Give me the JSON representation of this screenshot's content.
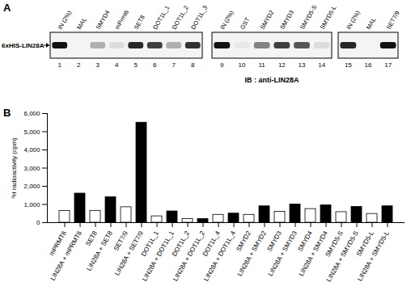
{
  "panels": [
    "A",
    "B"
  ],
  "blot": {
    "band_label": "6xHIS-LIN28A",
    "caption": "IB : anti-LIN28A",
    "groups": [
      {
        "lanes": [
          "IN (2%)",
          "MAL",
          "SMYD4",
          "mPrmt6",
          "SET8",
          "DOT1L_1",
          "DOT1L_2",
          "DOT1L_3"
        ],
        "numbers": [
          1,
          2,
          3,
          4,
          5,
          6,
          7,
          8
        ],
        "band": [
          1,
          0,
          0.3,
          0.1,
          0.9,
          0.8,
          0.3,
          0.85
        ]
      },
      {
        "lanes": [
          "IN (2%)",
          "GST",
          "SMYD2",
          "SMYD3",
          "SMYD5-S",
          "SMYD5-L"
        ],
        "numbers": [
          9,
          10,
          11,
          12,
          13,
          14
        ],
        "band": [
          1,
          0.05,
          0.5,
          0.8,
          0.7,
          0.1
        ]
      },
      {
        "lanes": [
          "IN (2%)",
          "MAL",
          "SET7/9"
        ],
        "numbers": [
          15,
          16,
          17
        ],
        "band": [
          0.9,
          0,
          1
        ]
      }
    ]
  },
  "chart_data": {
    "type": "bar",
    "y_label": "³H radioactivity (cpm)",
    "categories": [
      "mPRMT6",
      "LIN28A + mPRMT6",
      "SET8",
      "LIN28A + SET8",
      "SET7/9",
      "LIN28A + SET7/9",
      "DOT1L_1",
      "LIN28A + DOT1L_1",
      "DOT1L_2",
      "LIN28A + DOT1L_2",
      "DOT1L_4",
      "LIN28A + DOT1L_4",
      "SMYD2",
      "LIN28A + SMYD2",
      "SMYD3",
      "LIN28A + SMYD3",
      "SMYD4",
      "LIN28A + SMYD4",
      "SMYD5-S",
      "LIN28A + SMYD5-S",
      "SMYD5-L",
      "LIN28A + SMYD5-L"
    ],
    "values": [
      650,
      1600,
      650,
      1400,
      850,
      5500,
      350,
      620,
      200,
      200,
      430,
      500,
      430,
      900,
      600,
      1000,
      750,
      950,
      580,
      870,
      480,
      900
    ],
    "colors": [
      "#ffffff",
      "#000000",
      "#ffffff",
      "#000000",
      "#ffffff",
      "#000000",
      "#ffffff",
      "#000000",
      "#ffffff",
      "#000000",
      "#ffffff",
      "#000000",
      "#ffffff",
      "#000000",
      "#ffffff",
      "#000000",
      "#ffffff",
      "#000000",
      "#ffffff",
      "#000000",
      "#ffffff",
      "#000000"
    ],
    "ylim": [
      0,
      6000
    ],
    "yticks": [
      0,
      1000,
      2000,
      3000,
      4000,
      5000,
      6000
    ],
    "grid": false
  }
}
